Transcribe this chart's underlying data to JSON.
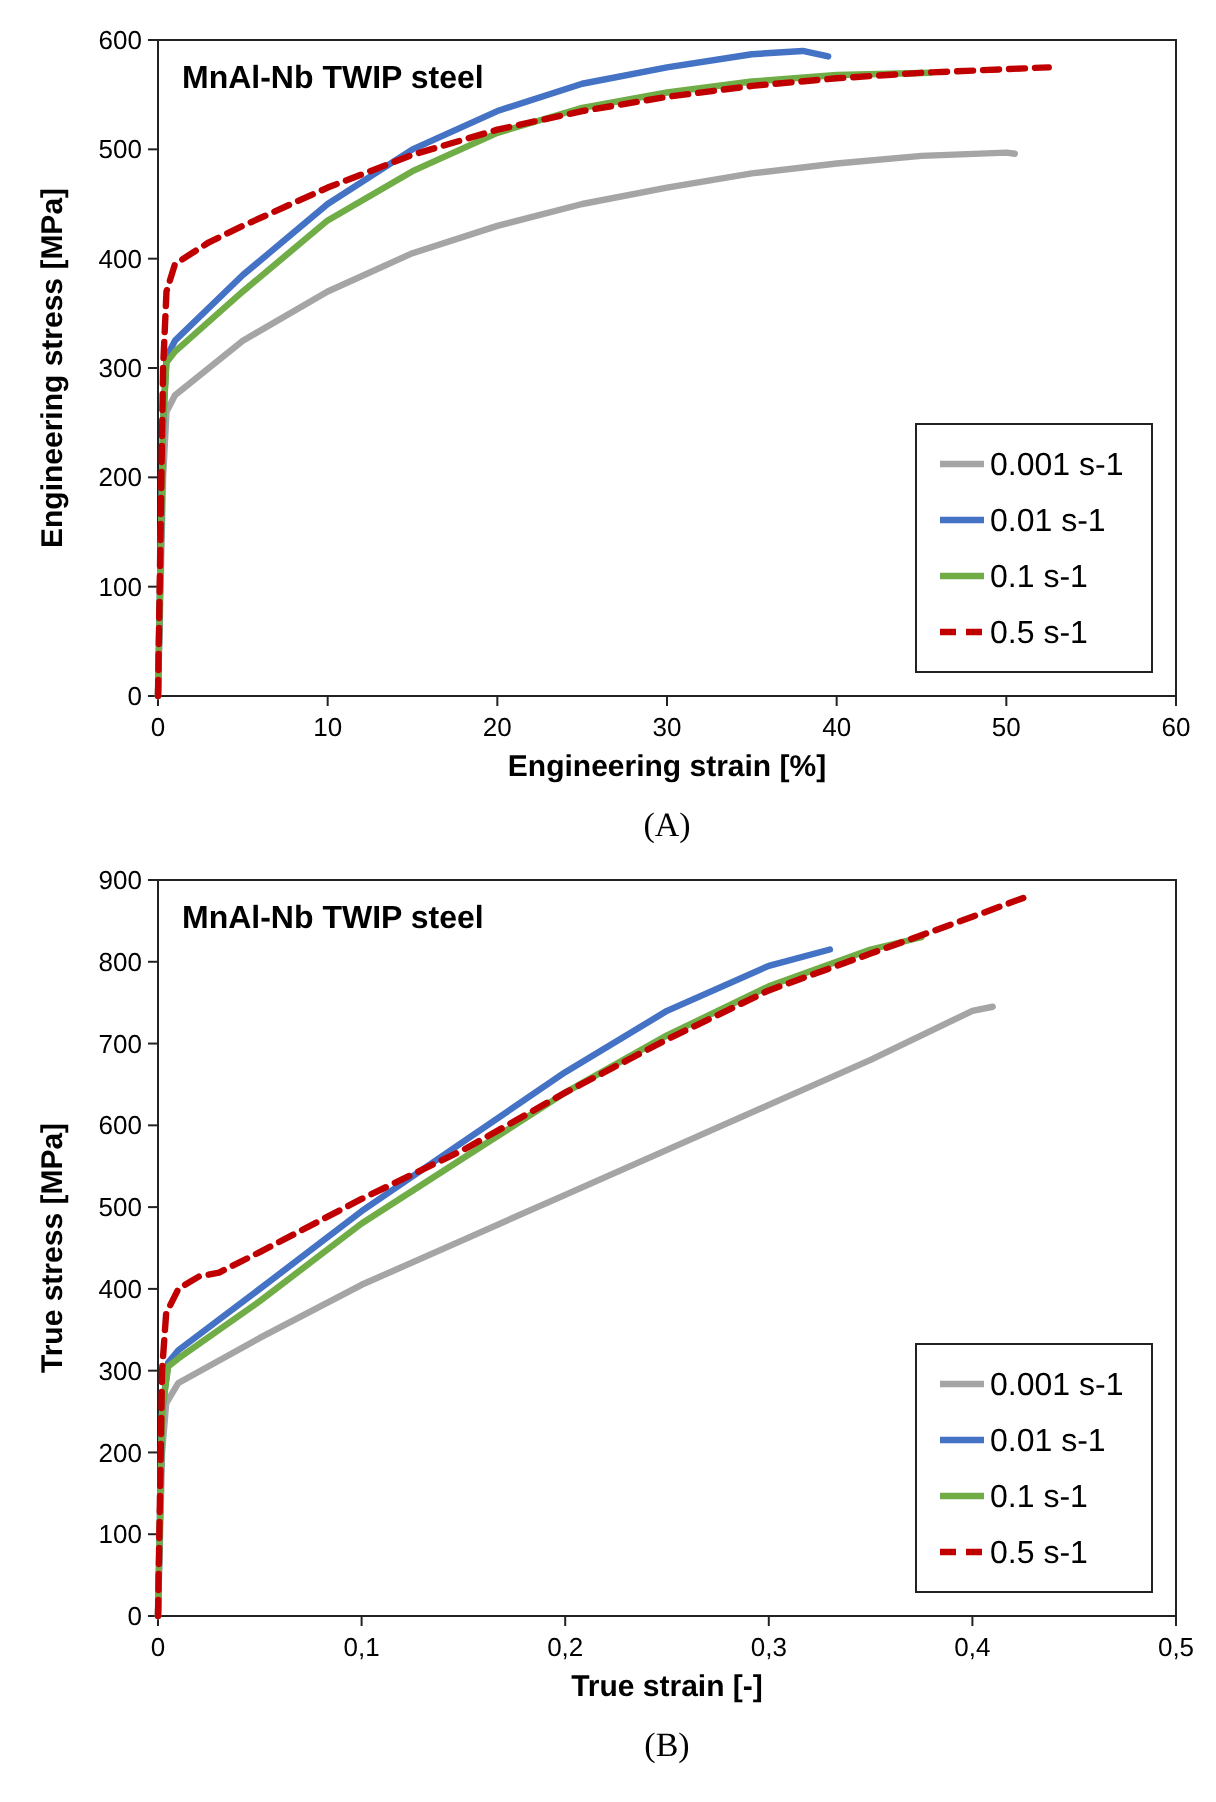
{
  "chart_data": [
    {
      "type": "line",
      "title": "MnAl-Nb TWIP steel",
      "xlabel": "Engineering strain [%]",
      "ylabel": "Engineering stress [MPa]",
      "annotations": [
        "(A)"
      ],
      "xlim": [
        0,
        60
      ],
      "ylim": [
        0,
        600
      ],
      "xticks": [
        0,
        10,
        20,
        30,
        40,
        50,
        60
      ],
      "yticks": [
        0,
        100,
        200,
        300,
        400,
        500,
        600
      ],
      "grid": false,
      "legend": "bottom right",
      "marker": "none",
      "series": [
        {
          "name": "0.001 s-1",
          "color": "#a5a5a5",
          "line_style": "solid",
          "x": [
            0,
            0.3,
            0.5,
            1,
            3,
            5,
            10,
            15,
            20,
            25,
            30,
            35,
            40,
            45,
            50,
            50.5
          ],
          "values": [
            0,
            200,
            260,
            275,
            300,
            325,
            370,
            405,
            430,
            450,
            465,
            478,
            487,
            494,
            497,
            496
          ]
        },
        {
          "name": "0.01 s-1",
          "color": "#4472c4",
          "line_style": "solid",
          "x": [
            0,
            0.3,
            0.5,
            1,
            5,
            10,
            15,
            20,
            25,
            30,
            35,
            38,
            39.5
          ],
          "values": [
            0,
            250,
            310,
            325,
            385,
            450,
            500,
            535,
            560,
            575,
            587,
            590,
            585
          ]
        },
        {
          "name": "0.1 s-1",
          "color": "#70ad47",
          "line_style": "solid",
          "x": [
            0,
            0.3,
            0.5,
            1,
            5,
            10,
            15,
            20,
            25,
            30,
            35,
            40,
            45.5
          ],
          "values": [
            0,
            250,
            305,
            315,
            370,
            435,
            480,
            515,
            538,
            552,
            562,
            568,
            570
          ]
        },
        {
          "name": "0.5 s-1",
          "color": "#c00000",
          "line_style": "dashed",
          "x": [
            0,
            0.3,
            0.5,
            1,
            3,
            5,
            10,
            15,
            20,
            25,
            30,
            35,
            40,
            45,
            52.5
          ],
          "values": [
            0,
            300,
            370,
            395,
            415,
            430,
            465,
            495,
            518,
            535,
            548,
            558,
            565,
            570,
            575
          ]
        }
      ]
    },
    {
      "type": "line",
      "title": "MnAl-Nb TWIP steel",
      "xlabel": "True strain [-]",
      "ylabel": "True stress [MPa]",
      "annotations": [
        "(B)"
      ],
      "xlim": [
        0,
        0.5
      ],
      "ylim": [
        0,
        900
      ],
      "xticks": [
        0,
        {
          "value": 0.1,
          "label": "0,1"
        },
        {
          "value": 0.2,
          "label": "0,2"
        },
        {
          "value": 0.3,
          "label": "0,3"
        },
        {
          "value": 0.4,
          "label": "0,4"
        },
        {
          "value": 0.5,
          "label": "0,5"
        }
      ],
      "yticks": [
        0,
        100,
        200,
        300,
        400,
        500,
        600,
        700,
        800,
        900
      ],
      "grid": false,
      "legend": "bottom right",
      "marker": "none",
      "series": [
        {
          "name": "0.001 s-1",
          "color": "#a5a5a5",
          "line_style": "solid",
          "x": [
            0,
            0.002,
            0.004,
            0.01,
            0.05,
            0.1,
            0.15,
            0.2,
            0.25,
            0.3,
            0.35,
            0.4,
            0.41
          ],
          "values": [
            0,
            200,
            260,
            285,
            340,
            405,
            460,
            515,
            570,
            625,
            680,
            740,
            745
          ]
        },
        {
          "name": "0.01 s-1",
          "color": "#4472c4",
          "line_style": "solid",
          "x": [
            0,
            0.002,
            0.005,
            0.01,
            0.05,
            0.1,
            0.15,
            0.2,
            0.25,
            0.3,
            0.33
          ],
          "values": [
            0,
            250,
            310,
            325,
            400,
            495,
            580,
            665,
            740,
            795,
            815
          ]
        },
        {
          "name": "0.1 s-1",
          "color": "#70ad47",
          "line_style": "solid",
          "x": [
            0,
            0.002,
            0.005,
            0.01,
            0.05,
            0.1,
            0.15,
            0.2,
            0.25,
            0.3,
            0.35,
            0.375
          ],
          "values": [
            0,
            250,
            305,
            315,
            385,
            480,
            560,
            640,
            710,
            770,
            815,
            830
          ]
        },
        {
          "name": "0.5 s-1",
          "color": "#c00000",
          "line_style": "dashed",
          "x": [
            0,
            0.002,
            0.004,
            0.01,
            0.02,
            0.03,
            0.05,
            0.1,
            0.15,
            0.2,
            0.25,
            0.3,
            0.35,
            0.4,
            0.425
          ],
          "values": [
            0,
            300,
            370,
            400,
            415,
            420,
            445,
            510,
            570,
            640,
            705,
            765,
            810,
            855,
            878
          ]
        }
      ]
    }
  ]
}
